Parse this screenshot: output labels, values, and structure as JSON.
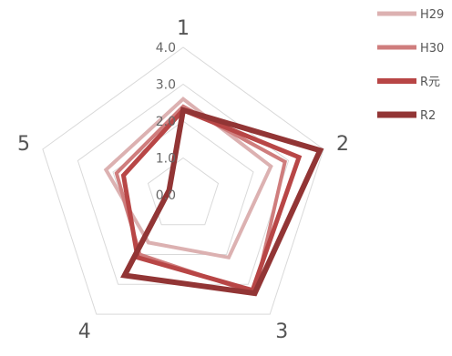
{
  "chart_data": {
    "type": "radar",
    "categories": [
      "1",
      "2",
      "3",
      "4",
      "5"
    ],
    "rlim": [
      0,
      4.0
    ],
    "ticks": [
      "0.0",
      "1.0",
      "2.0",
      "3.0",
      "4.0"
    ],
    "grid": true,
    "legend": "top-right",
    "series": [
      {
        "name": "H29",
        "values": [
          2.6,
          2.5,
          2.1,
          1.6,
          2.2
        ],
        "color": "#dcb1b1",
        "width": 4
      },
      {
        "name": "H30",
        "values": [
          2.4,
          2.9,
          3.3,
          2.0,
          1.9
        ],
        "color": "#cf7d7d",
        "width": 4
      },
      {
        "name": "R元",
        "values": [
          2.3,
          3.3,
          3.2,
          2.1,
          1.7
        ],
        "color": "#b84646",
        "width": 5
      },
      {
        "name": "R2",
        "values": [
          2.3,
          3.9,
          3.3,
          2.7,
          0.4
        ],
        "color": "#923535",
        "width": 6
      }
    ]
  }
}
